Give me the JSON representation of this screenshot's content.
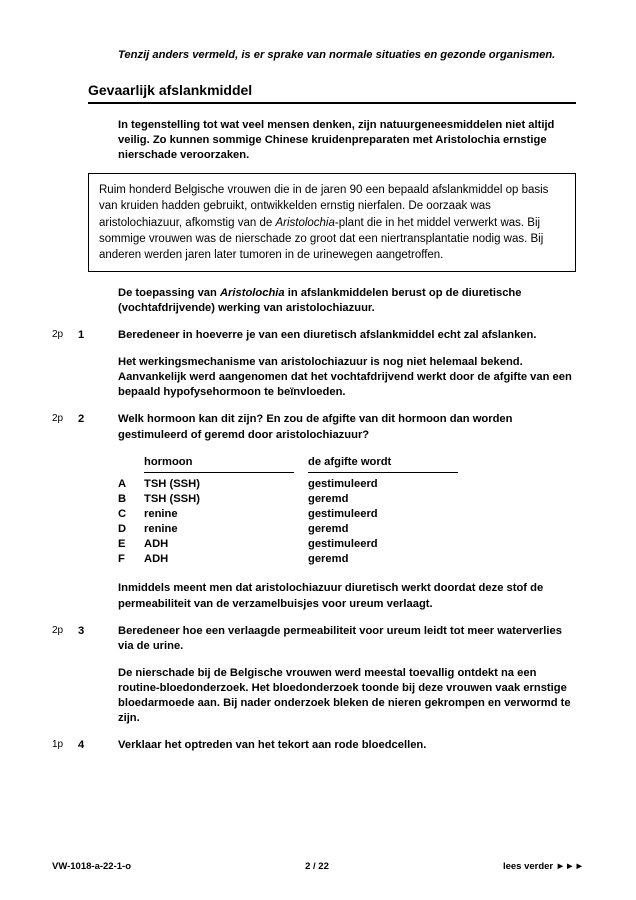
{
  "preamble": "Tenzij anders vermeld, is er sprake van normale situaties en gezonde organismen.",
  "section_title": "Gevaarlijk afslankmiddel",
  "intro": "In tegenstelling tot wat veel mensen denken, zijn natuurgeneesmiddelen niet altijd veilig. Zo kunnen sommige Chinese kruidenpreparaten met Aristolochia ernstige nierschade veroorzaken.",
  "box_pre": "Ruim honderd Belgische vrouwen die in de jaren 90 een bepaald afslankmiddel op basis van kruiden hadden gebruikt, ontwikkelden ernstig nierfalen. De oorzaak was aristolochiazuur, afkomstig van de ",
  "box_italic": "Aristolochia",
  "box_post": "-plant die in het middel verwerkt was. Bij sommige vrouwen was de nierschade zo groot dat een niertransplantatie nodig was. Bij anderen werden jaren later tumoren in de urinewegen aangetroffen.",
  "q1": {
    "lead_pre": "De toepassing van ",
    "lead_italic": "Aristolochia",
    "lead_post": " in afslankmiddelen berust op de diuretische (vochtafdrijvende) werking van aristolochiazuur.",
    "pts": "2p",
    "num": "1",
    "body": "Beredeneer in hoeverre je van een diuretisch afslankmiddel echt zal afslanken."
  },
  "q2": {
    "lead": "Het werkingsmechanisme van aristolochiazuur is nog niet helemaal bekend. Aanvankelijk werd aangenomen dat het vochtafdrijvend werkt door de afgifte van een bepaald hypofysehormoon te beïnvloeden.",
    "pts": "2p",
    "num": "2",
    "body": "Welk hormoon kan dit zijn? En zou de afgifte van dit hormoon dan worden gestimuleerd of geremd door aristolochiazuur?"
  },
  "table": {
    "head_left": "hormoon",
    "head_right": "de afgifte wordt",
    "rows": [
      {
        "k": "A",
        "l": "TSH (SSH)",
        "r": "gestimuleerd"
      },
      {
        "k": "B",
        "l": "TSH (SSH)",
        "r": "geremd"
      },
      {
        "k": "C",
        "l": "renine",
        "r": "gestimuleerd"
      },
      {
        "k": "D",
        "l": "renine",
        "r": "geremd"
      },
      {
        "k": "E",
        "l": "ADH",
        "r": "gestimuleerd"
      },
      {
        "k": "F",
        "l": "ADH",
        "r": "geremd"
      }
    ]
  },
  "q3": {
    "lead": "Inmiddels meent men dat aristolochiazuur diuretisch werkt doordat deze stof de permeabiliteit van de verzamelbuisjes voor ureum verlaagt.",
    "pts": "2p",
    "num": "3",
    "body": "Beredeneer hoe een verlaagde permeabiliteit voor ureum leidt tot meer waterverlies via de urine."
  },
  "q4": {
    "lead": "De nierschade bij de Belgische vrouwen werd meestal toevallig ontdekt na een routine-bloedonderzoek. Het bloedonderzoek toonde bij deze vrouwen vaak ernstige bloedarmoede aan. Bij nader onderzoek bleken de nieren gekrompen en verwormd te zijn.",
    "pts": "1p",
    "num": "4",
    "body": "Verklaar het optreden van het tekort aan rode bloedcellen."
  },
  "footer": {
    "left": "VW-1018-a-22-1-o",
    "center": "2 / 22",
    "right": "lees verder ►►►"
  }
}
